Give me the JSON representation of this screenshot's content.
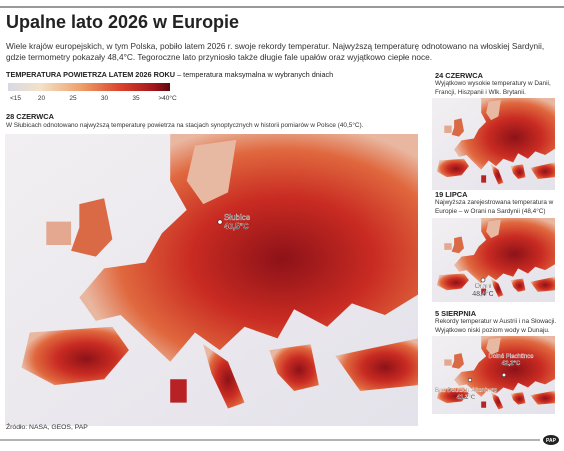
{
  "header": {
    "title": "Upalne lato 2026 w Europie",
    "lead": "Wiele krajów europejskich, w tym Polska, pobiło latem 2026 r. swoje rekordy temperatur. Najwyższą temperaturę odnotowano na włoskiej Sardynii, gdzie termometry pokazały 48,4°C. Tegoroczne lato przyniosło także długie fale upałów oraz wyjątkowo ciepłe noce."
  },
  "legend": {
    "title": "TEMPERATURA POWIETRZA LATEM 2026 ROKU",
    "subtitle": "– temperatura maksymalna w wybranych dniach",
    "labels": [
      "<15",
      "20",
      "25",
      "30",
      "35",
      ">40°C"
    ]
  },
  "main_map": {
    "date": "28 CZERWCA",
    "caption": "W Słubicach odnotowano najwyższą temperaturę powietrza na stacjach synoptycznych w historii pomiarów w Polsce (40,5°C).",
    "markers": [
      {
        "name": "Słubice",
        "value": "40,5°C"
      }
    ]
  },
  "insets": [
    {
      "date": "24 CZERWCA",
      "caption": "Wyjątkowo wysokie temperatury w Danii, Francji, Hiszpanii i Wlk. Brytanii.",
      "markers": []
    },
    {
      "date": "19 LIPCA",
      "caption": "Najwyższa zarejestrowana temperatura w Europie – w Orani na Sardynii (48,4°C)",
      "markers": [
        {
          "name": "Orani",
          "value": "48,4°C"
        }
      ]
    },
    {
      "date": "5 SIERPNIA",
      "caption": "Rekordy temperatur w Austrii i na Słowacji. Wyjątkowo niski poziom wody w Dunaju.",
      "markers": [
        {
          "name": "Bad Deutsch-Altenburg",
          "value": "41,2°C"
        },
        {
          "name": "Dolné Plachtince",
          "value": "42,2°C"
        }
      ]
    }
  ],
  "source": "Źródło: NASA, GEOS, PAP",
  "logo": "PAP"
}
